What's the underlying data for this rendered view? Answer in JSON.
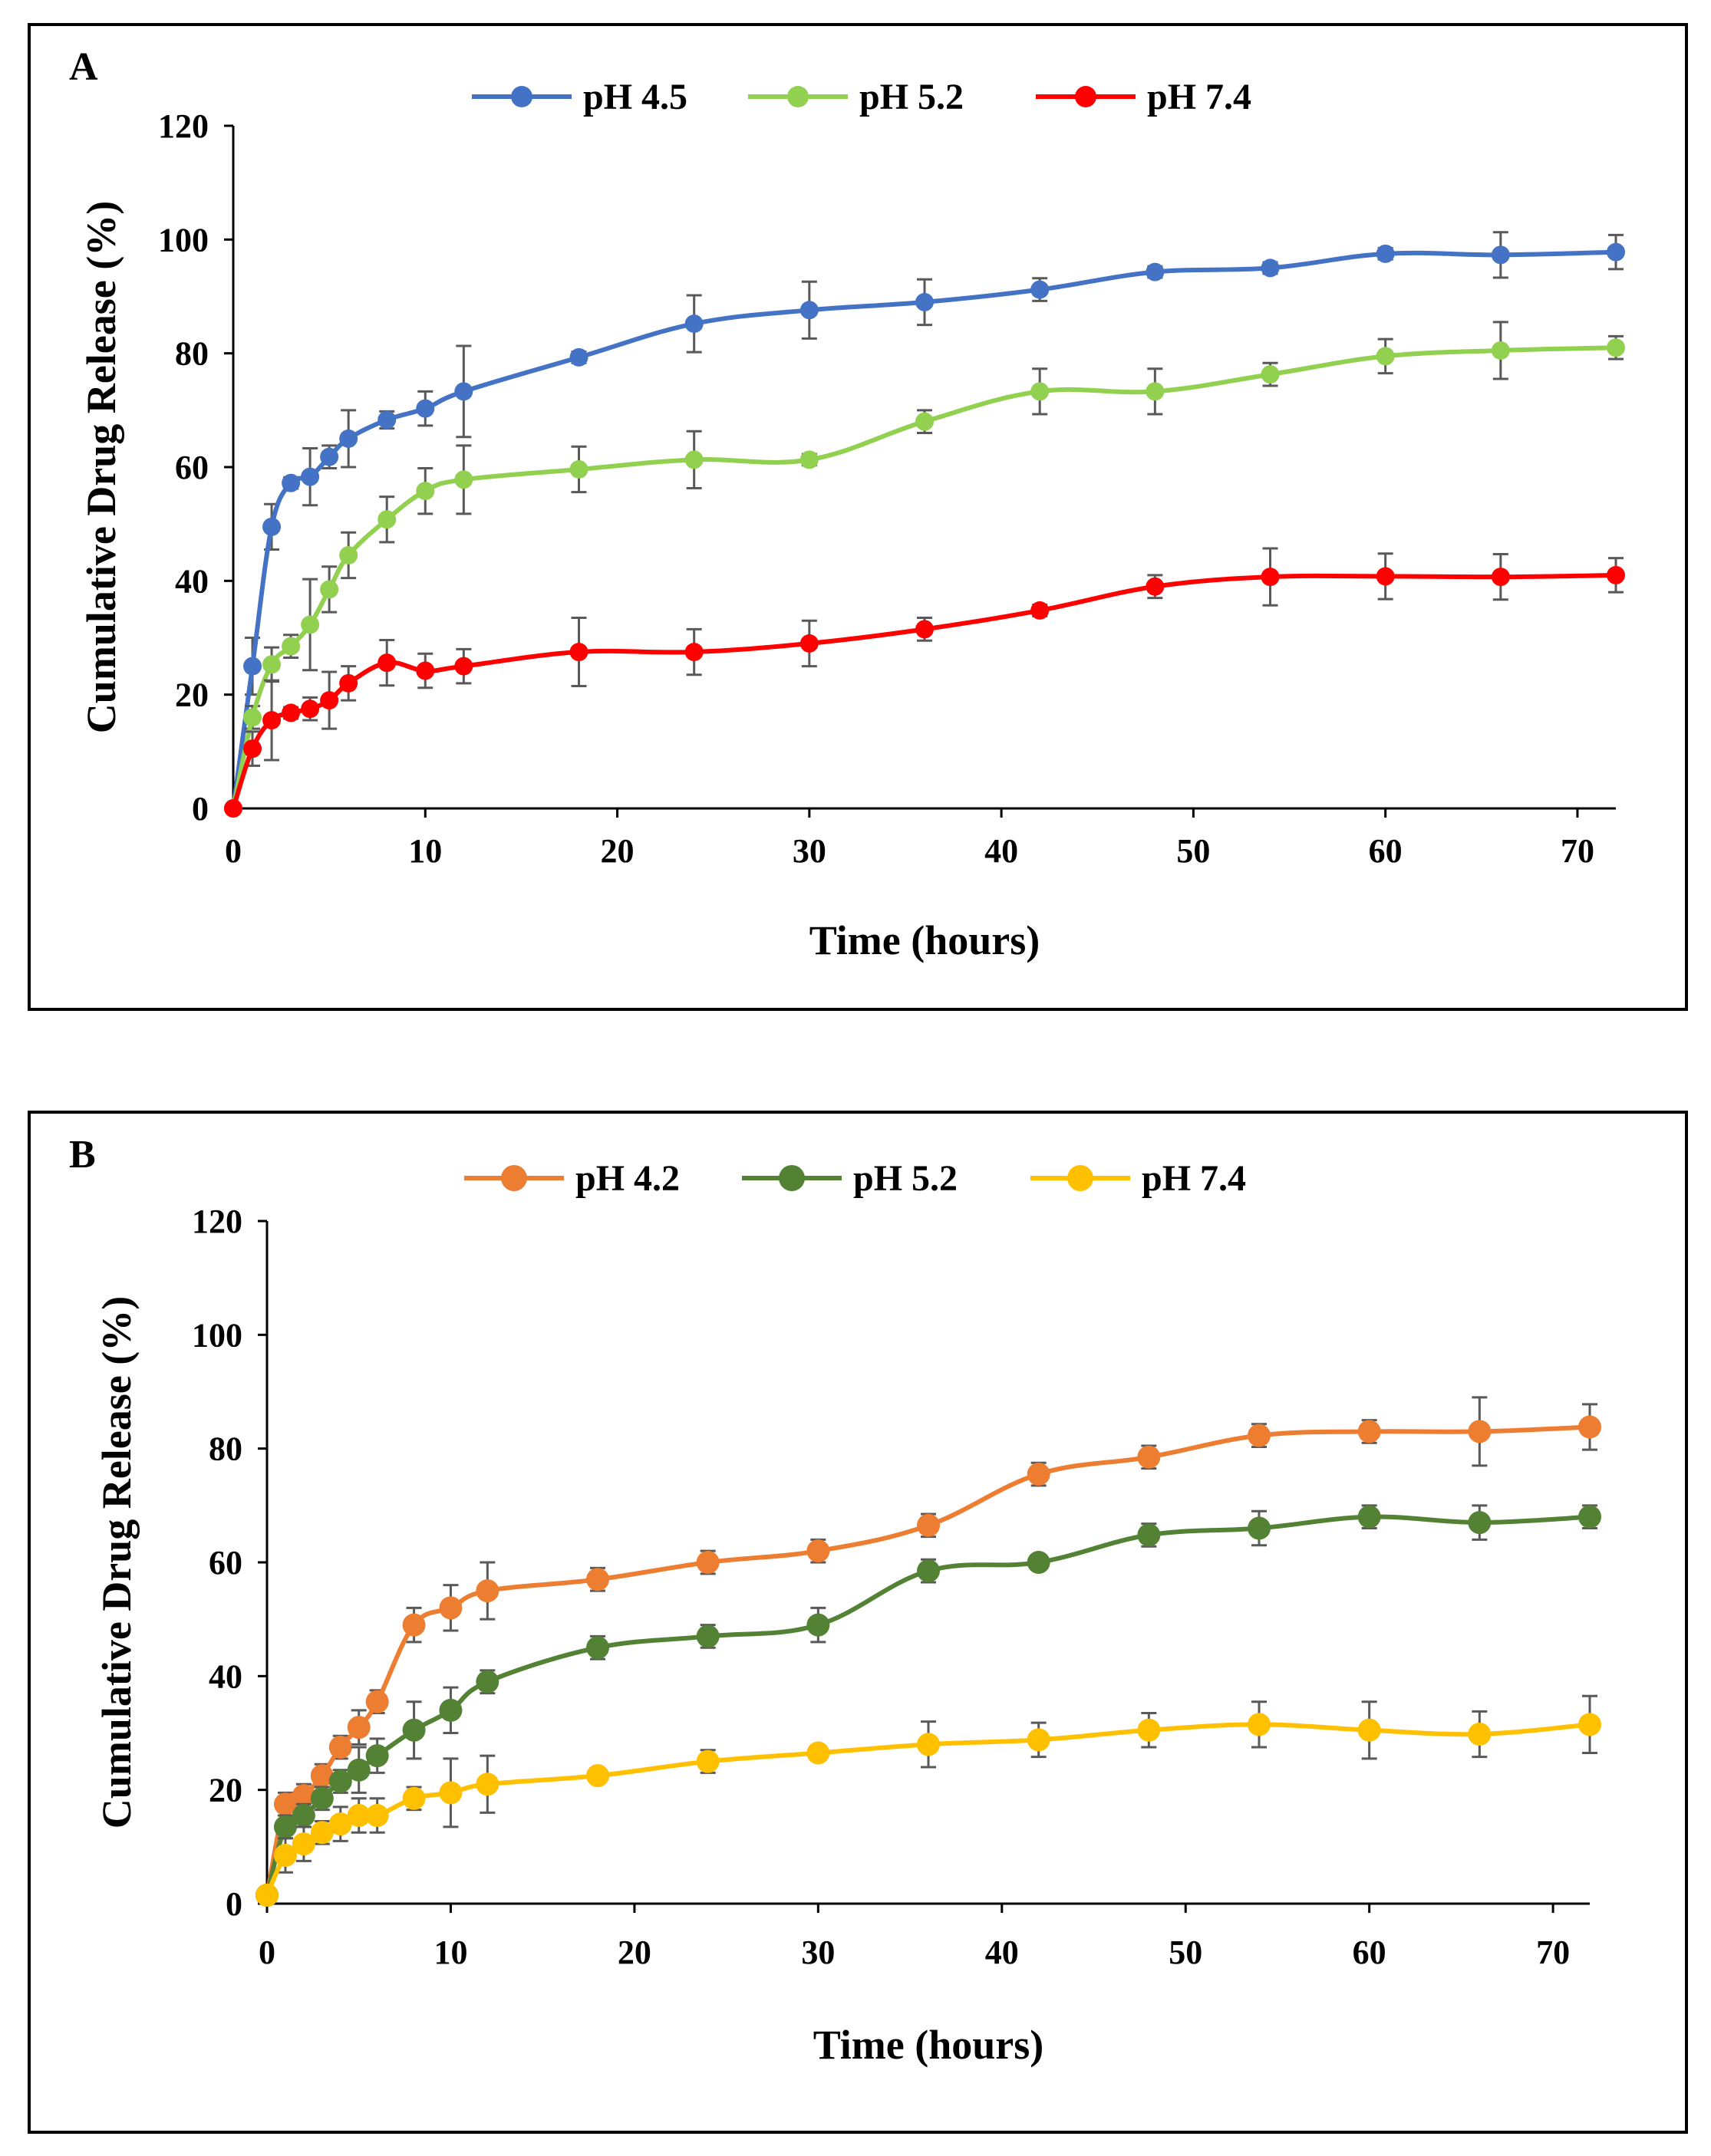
{
  "chart_data": [
    {
      "type": "line",
      "panel_label": "A",
      "title": "",
      "xlabel": "Time (hours)",
      "ylabel": "Cumulative Drug Release (%)",
      "xlim": [
        0,
        72
      ],
      "ylim": [
        0,
        120
      ],
      "x_ticks": [
        0,
        10,
        20,
        30,
        40,
        50,
        60,
        70
      ],
      "y_ticks": [
        0,
        20,
        40,
        60,
        80,
        100,
        120
      ],
      "x": [
        0,
        1,
        2,
        3,
        4,
        5,
        6,
        8,
        10,
        12,
        18,
        24,
        30,
        36,
        42,
        48,
        54,
        60,
        66,
        72
      ],
      "legend": "top-center",
      "grid": false,
      "series": [
        {
          "name": "pH 4.5",
          "color": "#4472C4",
          "values": [
            0,
            25,
            49.5,
            57.2,
            58.3,
            61.8,
            65,
            68.3,
            70.3,
            73.3,
            79.3,
            85.2,
            87.6,
            89,
            91.2,
            94.3,
            95,
            97.5,
            97.3,
            97.8
          ],
          "errors": [
            0,
            5,
            4,
            1,
            5,
            2,
            5,
            1.5,
            3,
            8,
            1,
            5,
            5,
            4,
            2,
            1,
            1,
            1,
            4,
            3
          ]
        },
        {
          "name": "pH 5.2",
          "color": "#92D050",
          "values": [
            0,
            16,
            25.3,
            28.5,
            32.3,
            38.5,
            44.5,
            50.8,
            55.8,
            57.8,
            59.6,
            61.3,
            61.3,
            68,
            73.3,
            73.3,
            76.3,
            79.5,
            80.5,
            81
          ],
          "errors": [
            0,
            2,
            3,
            2,
            8,
            4,
            4,
            4,
            4,
            6,
            4,
            5,
            1,
            2,
            4,
            4,
            2,
            3,
            5,
            2
          ]
        },
        {
          "name": "pH 7.4",
          "color": "#FF0000",
          "values": [
            0,
            10.5,
            15.5,
            16.8,
            17.5,
            19,
            22,
            25.6,
            24.2,
            25,
            27.5,
            27.5,
            29,
            31.5,
            34.8,
            39,
            40.7,
            40.8,
            40.7,
            41
          ],
          "errors": [
            0,
            3,
            7,
            1,
            2,
            5,
            3,
            4,
            3,
            3,
            6,
            4,
            4,
            2,
            1,
            2,
            5,
            4,
            4,
            3
          ]
        }
      ]
    },
    {
      "type": "line",
      "panel_label": "B",
      "title": "",
      "xlabel": "Time (hours)",
      "ylabel": "Cumulative Drug Release (%)",
      "xlim": [
        0,
        72
      ],
      "ylim": [
        0,
        120
      ],
      "x_ticks": [
        0,
        10,
        20,
        30,
        40,
        50,
        60,
        70
      ],
      "y_ticks": [
        0,
        20,
        40,
        60,
        80,
        100,
        120
      ],
      "x": [
        0,
        1,
        2,
        3,
        4,
        5,
        6,
        8,
        10,
        12,
        18,
        24,
        30,
        36,
        42,
        48,
        54,
        60,
        66,
        72
      ],
      "legend": "top-center",
      "grid": false,
      "series": [
        {
          "name": "pH 4.2",
          "color": "#ED7D31",
          "values": [
            1.5,
            17.5,
            19,
            22.5,
            27.5,
            31,
            35.5,
            49,
            52,
            55,
            57,
            60,
            62,
            66.5,
            75.5,
            78.5,
            82.3,
            83,
            83,
            83.8
          ],
          "errors": [
            0,
            2,
            2,
            2,
            2,
            3,
            2,
            3,
            4,
            5,
            2,
            2,
            2,
            2,
            2,
            2,
            2,
            2,
            6,
            4
          ]
        },
        {
          "name": "pH 5.2",
          "color": "#548235",
          "values": [
            1.5,
            13.5,
            15.5,
            18.5,
            21.5,
            23.5,
            26,
            30.5,
            34,
            39,
            45,
            47,
            49,
            58.5,
            60,
            64.8,
            66,
            68,
            67,
            68
          ],
          "errors": [
            0,
            2,
            2,
            2,
            2,
            4,
            3,
            5,
            4,
            2,
            2,
            2,
            3,
            2,
            1,
            2,
            3,
            2,
            3,
            2
          ]
        },
        {
          "name": "pH 7.4",
          "color": "#FFC000",
          "values": [
            1.5,
            8.5,
            10.5,
            12.5,
            14,
            15.5,
            15.5,
            18.5,
            19.5,
            21,
            22.5,
            25,
            26.5,
            28,
            28.8,
            30.5,
            31.5,
            30.5,
            29.8,
            31.5
          ],
          "errors": [
            0,
            3,
            3,
            2,
            3,
            3,
            3,
            2,
            6,
            5,
            1,
            2,
            1,
            4,
            3,
            3,
            4,
            5,
            4,
            5
          ]
        }
      ]
    }
  ]
}
